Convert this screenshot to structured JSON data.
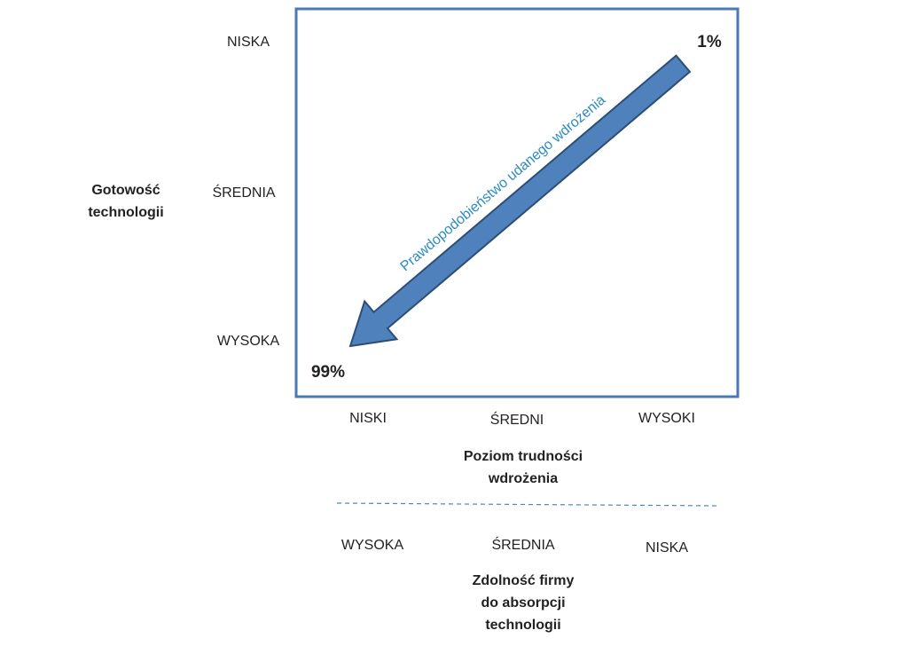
{
  "y_axis": {
    "labels": [
      "NISKA",
      "ŚREDNIA",
      "WYSOKA"
    ],
    "title": [
      "Gotowość",
      "technologii"
    ]
  },
  "x_axis": {
    "labels": [
      "NISKI",
      "ŚREDNI",
      "WYSOKI"
    ],
    "title": [
      "Poziom trudności",
      "wdrożenia"
    ]
  },
  "x_axis_2": {
    "labels": [
      "WYSOKA",
      "ŚREDNIA",
      "NISKA"
    ],
    "title": [
      "Zdolność firmy",
      "do absorpcji",
      "technologii"
    ]
  },
  "arrow": {
    "label": "Prawdopodobieństwo udanego wdrożenia",
    "start": "1%",
    "end": "99%"
  }
}
